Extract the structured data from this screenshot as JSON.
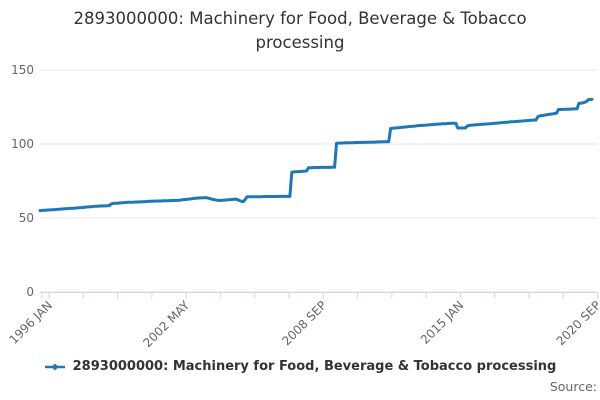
{
  "title": "2893000000: Machinery for Food, Beverage & Tobacco processing",
  "legend": {
    "label": "2893000000: Machinery for Food, Beverage & Tobacco processing"
  },
  "source_label": "Source:",
  "colors": {
    "line": "#1d78b5",
    "grid": "#e6e6e6",
    "axis": "#ccd6eb",
    "title_text": "#333333",
    "axis_label": "#666666",
    "legend_text": "#333333",
    "source_text": "#666666"
  },
  "chart_data": {
    "type": "line",
    "title": "2893000000: Machinery for Food, Beverage & Tobacco processing",
    "xlabel": "",
    "ylabel": "",
    "ylim": [
      0,
      150
    ],
    "y_ticks": [
      0,
      50,
      100,
      150
    ],
    "x_tick_labels": [
      "1996 JAN",
      "2002 MAY",
      "2008 SEP",
      "2015 JAN",
      "2020 SEP"
    ],
    "x_minor_tick_count": 17,
    "frequency": "monthly",
    "x_start": "1996 JAN",
    "x_end": "2020 SEP",
    "grid": "horizontal-only",
    "legend_position": "bottom-center",
    "series": [
      {
        "name": "2893000000: Machinery for Food, Beverage & Tobacco processing",
        "values": [
          55.0,
          55.1,
          55.2,
          55.3,
          55.4,
          55.5,
          55.5,
          55.6,
          55.7,
          55.8,
          55.9,
          56.0,
          56.1,
          56.2,
          56.3,
          56.4,
          56.5,
          56.5,
          56.6,
          56.7,
          56.8,
          56.9,
          57.0,
          57.1,
          57.2,
          57.4,
          57.5,
          57.6,
          57.7,
          57.9,
          58.0,
          58.0,
          58.1,
          58.1,
          58.2,
          58.2,
          58.3,
          58.3,
          59.3,
          59.8,
          59.9,
          60.0,
          60.1,
          60.2,
          60.3,
          60.4,
          60.5,
          60.6,
          60.6,
          60.7,
          60.7,
          60.8,
          60.8,
          60.9,
          60.9,
          61.0,
          61.1,
          61.1,
          61.2,
          61.3,
          61.3,
          61.4,
          61.4,
          61.5,
          61.5,
          61.5,
          61.6,
          61.6,
          61.7,
          61.7,
          61.8,
          61.8,
          61.8,
          61.9,
          61.9,
          62.0,
          62.2,
          62.4,
          62.5,
          62.7,
          62.8,
          63.0,
          63.1,
          63.3,
          63.4,
          63.5,
          63.6,
          63.6,
          63.7,
          63.8,
          63.5,
          63.2,
          62.8,
          62.5,
          62.2,
          62.0,
          61.8,
          61.9,
          62.0,
          62.1,
          62.2,
          62.3,
          62.4,
          62.5,
          62.7,
          62.8,
          62.3,
          61.8,
          61.3,
          61.0,
          62.5,
          64.3,
          64.3,
          64.3,
          64.3,
          64.4,
          64.4,
          64.4,
          64.4,
          64.4,
          64.5,
          64.5,
          64.5,
          64.5,
          64.5,
          64.5,
          64.5,
          64.5,
          64.6,
          64.6,
          64.6,
          64.6,
          64.6,
          64.6,
          64.6,
          81.0,
          81.1,
          81.2,
          81.3,
          81.4,
          81.5,
          81.6,
          81.7,
          81.8,
          84.0,
          84.0,
          84.0,
          84.1,
          84.1,
          84.1,
          84.1,
          84.2,
          84.2,
          84.2,
          84.2,
          84.2,
          84.3,
          84.3,
          84.3,
          100.5,
          100.6,
          100.6,
          100.7,
          100.7,
          100.8,
          100.8,
          100.8,
          100.9,
          100.9,
          101.0,
          101.0,
          101.0,
          101.1,
          101.1,
          101.1,
          101.2,
          101.2,
          101.2,
          101.3,
          101.3,
          101.3,
          101.4,
          101.4,
          101.4,
          101.5,
          101.5,
          101.5,
          101.5,
          110.5,
          110.6,
          110.8,
          110.9,
          111.0,
          111.1,
          111.3,
          111.4,
          111.5,
          111.6,
          111.8,
          111.9,
          112.0,
          112.1,
          112.3,
          112.4,
          112.5,
          112.6,
          112.7,
          112.8,
          112.9,
          113.0,
          113.1,
          113.2,
          113.3,
          113.4,
          113.5,
          113.6,
          113.7,
          113.7,
          113.8,
          113.9,
          113.9,
          114.0,
          114.0,
          114.0,
          110.8,
          110.8,
          110.8,
          110.8,
          110.8,
          112.0,
          112.6,
          112.7,
          112.8,
          112.9,
          113.0,
          113.1,
          113.2,
          113.3,
          113.4,
          113.5,
          113.6,
          113.7,
          113.8,
          113.9,
          114.0,
          114.1,
          114.2,
          114.3,
          114.5,
          114.6,
          114.7,
          114.8,
          114.9,
          115.0,
          115.1,
          115.2,
          115.3,
          115.4,
          115.5,
          115.6,
          115.7,
          115.8,
          115.9,
          116.0,
          116.1,
          116.2,
          116.2,
          118.5,
          119.0,
          119.2,
          119.4,
          119.6,
          119.8,
          120.0,
          120.2,
          120.4,
          120.6,
          120.8,
          123.3,
          123.3,
          123.4,
          123.4,
          123.5,
          123.5,
          123.6,
          123.6,
          123.7,
          123.7,
          123.8,
          127.5,
          127.6,
          127.8,
          128.2,
          128.6,
          130.0,
          130.0,
          130.2
        ]
      }
    ]
  }
}
